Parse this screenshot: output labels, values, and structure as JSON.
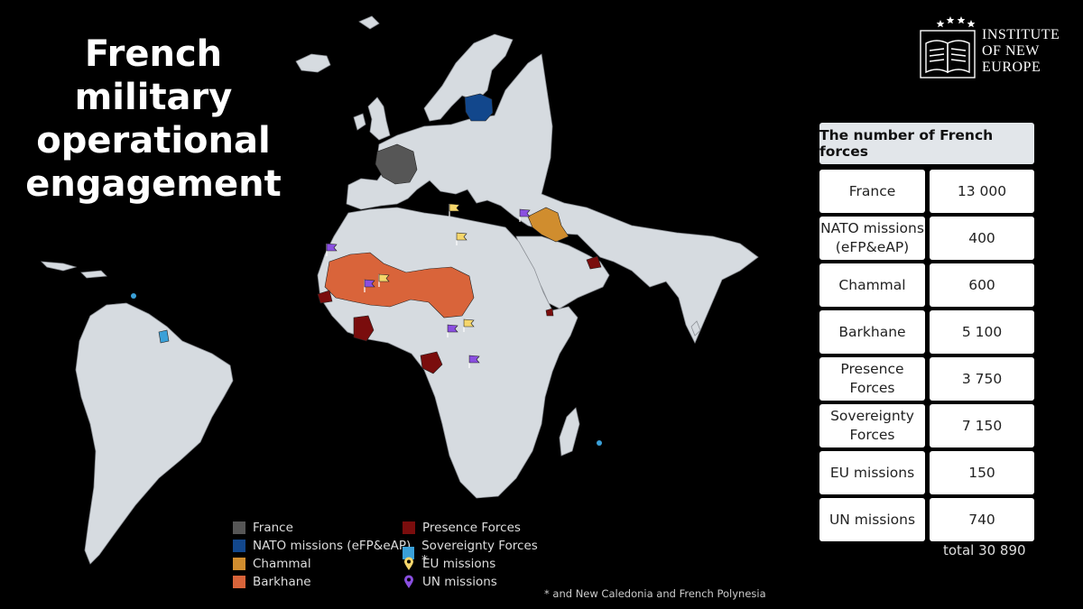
{
  "title": [
    "French military",
    "operational",
    "engagement"
  ],
  "logo": {
    "lines": [
      "INSTITUTE",
      "OF NEW",
      "EUROPE"
    ]
  },
  "table": {
    "header": "The number of French forces",
    "rows": [
      {
        "label": "France",
        "value": "13 000"
      },
      {
        "label": "NATO missions (eFP&eAP)",
        "value": "400"
      },
      {
        "label": "Chammal",
        "value": "600"
      },
      {
        "label": "Barkhane",
        "value": "5 100"
      },
      {
        "label": "Presence Forces",
        "value": "3 750"
      },
      {
        "label": "Sovereignty Forces",
        "value": "7 150"
      },
      {
        "label": "EU missions",
        "value": "150"
      },
      {
        "label": "UN missions",
        "value": "740"
      }
    ],
    "total": "total 30 890"
  },
  "legend": [
    {
      "label": "France",
      "color": "#565656",
      "kind": "square"
    },
    {
      "label": "NATO missions (eFP&eAP)",
      "color": "#12478c",
      "kind": "square"
    },
    {
      "label": "Chammal",
      "color": "#d08d2e",
      "kind": "square"
    },
    {
      "label": "Barkhane",
      "color": "#d9643a",
      "kind": "square"
    },
    {
      "label": "Presence Forces",
      "color": "#7a0d0d",
      "kind": "square"
    },
    {
      "label": "Sovereignty Forces *",
      "color": "#3aa0d8",
      "kind": "square"
    },
    {
      "label": "EU missions",
      "color": "#f5d66b",
      "kind": "pin"
    },
    {
      "label": "UN missions",
      "color": "#8a4fe0",
      "kind": "pin"
    }
  ],
  "footnote": "* and New Caledonia and French Polynesia",
  "colors": {
    "land": "#d6dbe0",
    "border": "#8c9096",
    "background": "#000000"
  },
  "map_markers": [
    {
      "type": "EU missions",
      "place": "Mediterranean (Libya coast)"
    },
    {
      "type": "EU missions",
      "place": "Libya"
    },
    {
      "type": "EU missions",
      "place": "Mali"
    },
    {
      "type": "EU missions",
      "place": "Central African Republic"
    },
    {
      "type": "UN missions",
      "place": "Western Sahara"
    },
    {
      "type": "UN missions",
      "place": "Mali"
    },
    {
      "type": "UN missions",
      "place": "Lebanon"
    },
    {
      "type": "UN missions",
      "place": "Central African Republic"
    },
    {
      "type": "UN missions",
      "place": "DR Congo"
    }
  ]
}
